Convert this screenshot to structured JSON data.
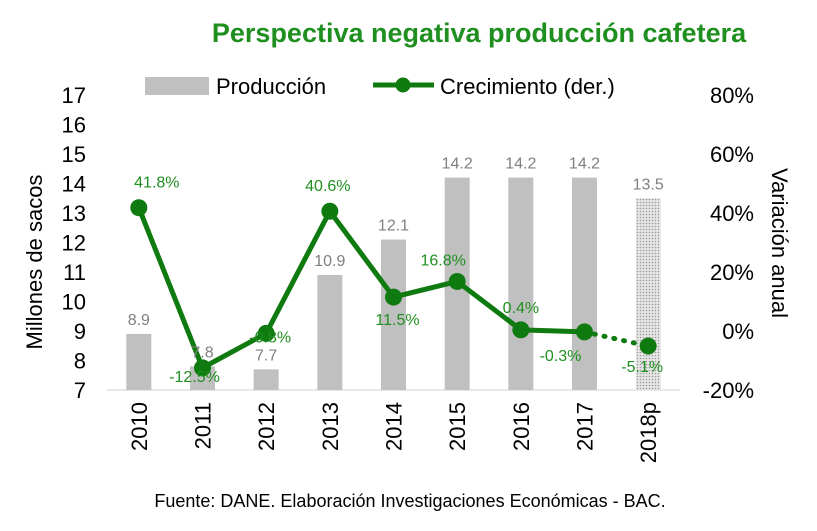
{
  "chart_data": {
    "type": "bar+line",
    "title": "Perspectiva negativa producción cafetera",
    "categories": [
      "2010",
      "2011",
      "2012",
      "2013",
      "2014",
      "2015",
      "2016",
      "2017",
      "2018p"
    ],
    "series": [
      {
        "name": "Producción",
        "type": "bar",
        "axis": "left",
        "values": [
          8.9,
          7.8,
          7.7,
          10.9,
          12.1,
          14.2,
          14.2,
          14.2,
          13.5
        ],
        "labels": [
          "8.9",
          "7.8",
          "7.7",
          "10.9",
          "12.1",
          "14.2",
          "14.2",
          "14.2",
          "13.5"
        ],
        "projected_last": true
      },
      {
        "name": "Crecimiento (der.)",
        "type": "line",
        "axis": "right",
        "values": [
          41.8,
          -12.5,
          -0.8,
          40.6,
          11.5,
          16.8,
          0.4,
          -0.3,
          -5.1
        ],
        "labels": [
          "41.8%",
          "-12.5%",
          "-0.8%",
          "40.6%",
          "11.5%",
          "16.8%",
          "0.4%",
          "-0.3%",
          "-5.1%"
        ],
        "projected_last": true
      }
    ],
    "ylabel_left": "Millones de sacos",
    "ylabel_right": "Variación anual",
    "ylim_left": [
      7,
      17
    ],
    "yticks_left": [
      "7",
      "8",
      "9",
      "10",
      "11",
      "12",
      "13",
      "14",
      "15",
      "16",
      "17"
    ],
    "ylim_right": [
      -20,
      80
    ],
    "yticks_right": [
      "-20%",
      "0%",
      "20%",
      "40%",
      "60%",
      "80%"
    ],
    "legend_position": "top",
    "grid": false,
    "colors": {
      "bar": "#c0c0c0",
      "bar_label": "#808080",
      "line": "#0f7a0f",
      "line_label": "#1f8f1f",
      "title": "#1f8f1f"
    },
    "source": "Fuente: DANE. Elaboración Investigaciones Económicas - BAC."
  }
}
